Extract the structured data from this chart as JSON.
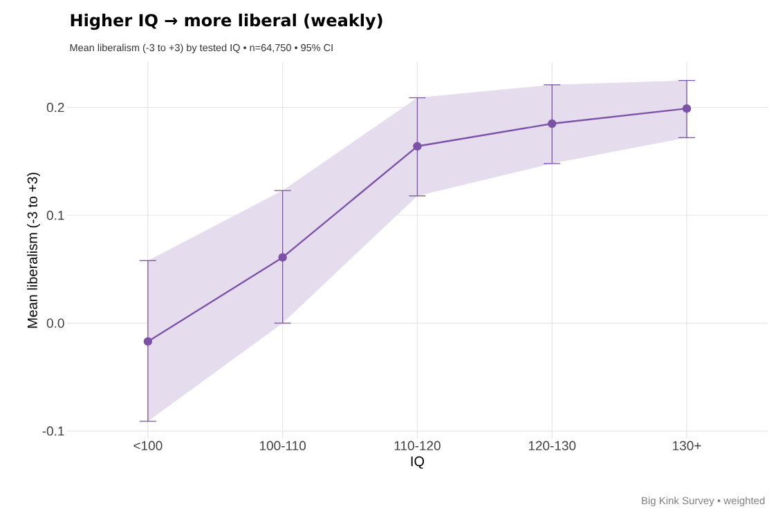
{
  "chart_data": {
    "type": "line",
    "title": "Higher IQ → more liberal (weakly)",
    "subtitle": "Mean liberalism (-3 to +3) by tested IQ  •  n=64,750  •  95% CI",
    "xlabel": "IQ",
    "ylabel": "Mean liberalism (-3 to +3)",
    "annotations": [
      "Big Kink Survey  •  weighted"
    ],
    "categories": [
      "<100",
      "100-110",
      "110-120",
      "120-130",
      "130+"
    ],
    "series": [
      {
        "color": "#7b52a8",
        "values": [
          -0.017,
          0.061,
          0.164,
          0.185,
          0.199
        ],
        "errors": [
          [
            -0.091,
            0.058
          ],
          [
            0.0,
            0.123
          ],
          [
            0.118,
            0.209
          ],
          [
            0.148,
            0.221
          ],
          [
            0.172,
            0.225
          ]
        ],
        "lower": [
          -0.091,
          0.0,
          0.118,
          0.148,
          0.172
        ],
        "upper": [
          0.058,
          0.123,
          0.209,
          0.221,
          0.225
        ]
      }
    ],
    "ylim": [
      -0.107,
      0.242
    ],
    "yticks": [
      -0.1,
      {
        "value": 0,
        "label": "0.0"
      },
      0.1,
      0.2
    ],
    "grid": true,
    "marker": "circle",
    "line_style": "solid"
  }
}
